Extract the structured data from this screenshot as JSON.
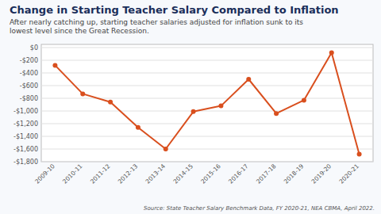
{
  "chart_data": {
    "type": "line",
    "title": "Change in Starting Teacher Salary Compared to Inflation",
    "subtitle": "After nearly catching up, starting teacher salaries adjusted for inflation sunk to its\nlowest level since the Great Recession.",
    "source": "Source: State Teacher Salary Benchmark Data, FY 2020-21, NEA CBMA, April 2022.",
    "categories": [
      "2009-10",
      "2010-11",
      "2011-12",
      "2012-13",
      "2013-14",
      "2014-15",
      "2015-16",
      "2016-17",
      "2017-18",
      "2018-19",
      "2019-20",
      "2020-21"
    ],
    "values": [
      -280,
      -730,
      -860,
      -1260,
      -1600,
      -1010,
      -920,
      -500,
      -1040,
      -830,
      -80,
      -1680
    ],
    "color": "#d94f1e",
    "ylim": [
      -1800,
      50
    ],
    "yticks": [
      {
        "value": 0,
        "label": "$0"
      },
      {
        "value": -200,
        "label": "-$200"
      },
      {
        "value": -400,
        "label": "-$400"
      },
      {
        "value": -600,
        "label": "-$600"
      },
      {
        "value": -800,
        "label": "-$800"
      },
      {
        "value": -1000,
        "label": "-$1,000"
      },
      {
        "value": -1200,
        "label": "-$1,200"
      },
      {
        "value": -1400,
        "label": "-$1,400"
      },
      {
        "value": -1600,
        "label": "-$1,600"
      },
      {
        "value": -1800,
        "label": "-$1,800"
      }
    ],
    "grid": true
  }
}
